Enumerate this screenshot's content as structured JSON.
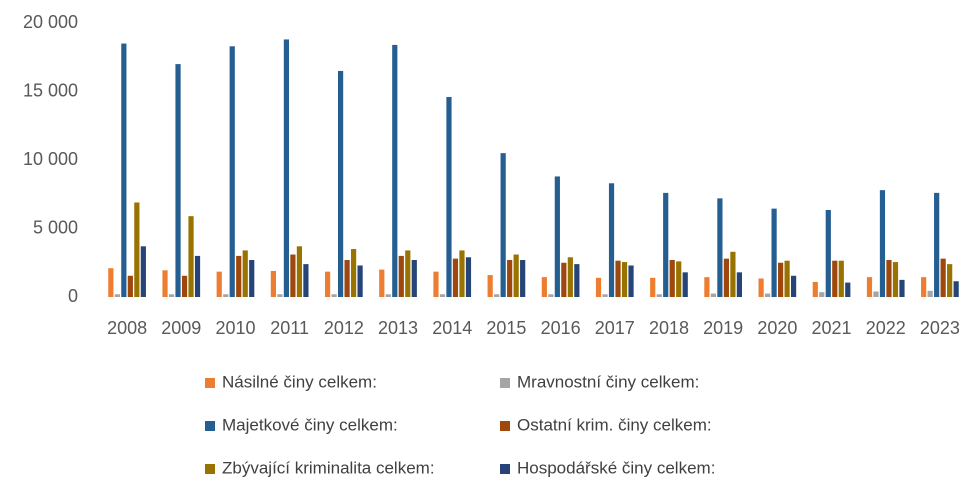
{
  "chart_data": {
    "type": "bar",
    "categories": [
      "2008",
      "2009",
      "2010",
      "2011",
      "2012",
      "2013",
      "2014",
      "2015",
      "2016",
      "2017",
      "2018",
      "2019",
      "2020",
      "2021",
      "2022",
      "2023"
    ],
    "series": [
      {
        "name": "Násilné činy celkem:",
        "color": "#ED7D31",
        "values": [
          2100,
          1950,
          1850,
          1900,
          1850,
          2000,
          1850,
          1600,
          1450,
          1400,
          1400,
          1450,
          1350,
          1100,
          1450,
          1450
        ]
      },
      {
        "name": "Mravnostní činy celkem:",
        "color": "#A5A5A5",
        "values": [
          200,
          200,
          200,
          200,
          200,
          200,
          200,
          200,
          200,
          200,
          200,
          250,
          250,
          350,
          400,
          450
        ]
      },
      {
        "name": "Majetkové činy celkem:",
        "color": "#255E91",
        "values": [
          18500,
          17000,
          18300,
          18800,
          16500,
          18400,
          14600,
          10500,
          8800,
          8300,
          7600,
          7200,
          6450,
          6350,
          7800,
          7600
        ]
      },
      {
        "name": "Ostatní krim. činy celkem:",
        "color": "#9E480E",
        "values": [
          1550,
          1550,
          3000,
          3100,
          2700,
          3000,
          2800,
          2700,
          2500,
          2650,
          2700,
          2800,
          2500,
          2650,
          2700,
          2800
        ]
      },
      {
        "name": "Zbývající kriminalita celkem:",
        "color": "#997300",
        "values": [
          6900,
          5900,
          3400,
          3700,
          3500,
          3400,
          3400,
          3100,
          2900,
          2550,
          2600,
          3300,
          2650,
          2650,
          2550,
          2400
        ]
      },
      {
        "name": "Hospodářské činy celkem:",
        "color": "#264478",
        "values": [
          3700,
          3000,
          2700,
          2400,
          2300,
          2700,
          2900,
          2700,
          2400,
          2300,
          1800,
          1800,
          1550,
          1050,
          1250,
          1150
        ]
      }
    ],
    "ylim": [
      0,
      20000
    ],
    "yticks": [
      0,
      {
        "value": 5000,
        "label": "5 000"
      },
      {
        "value": 10000,
        "label": "10 000"
      },
      {
        "value": 15000,
        "label": "15 000"
      },
      {
        "value": 20000,
        "label": "20 000"
      }
    ],
    "grid": false
  }
}
